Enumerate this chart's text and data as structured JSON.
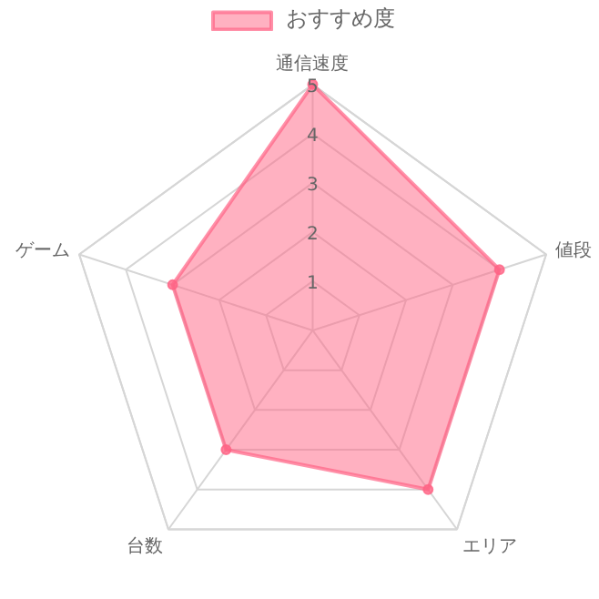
{
  "chart_data": {
    "type": "radar",
    "categories": [
      "通信速度",
      "値段",
      "エリア",
      "台数",
      "ゲーム"
    ],
    "series": [
      {
        "name": "おすすめ度",
        "color": "#ff6384",
        "values": [
          5,
          4,
          4,
          3,
          3
        ]
      }
    ],
    "ylim": [
      0,
      5
    ],
    "yticks": [
      1,
      2,
      3,
      4,
      5
    ],
    "grid": true,
    "legend": "top",
    "marker": "circle"
  }
}
